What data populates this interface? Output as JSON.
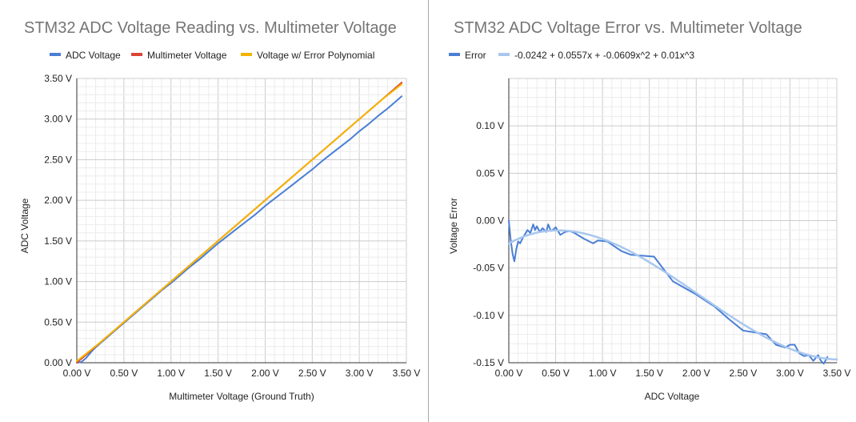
{
  "charts": [
    {
      "title": "STM32 ADC Voltage Reading vs. Multimeter Voltage",
      "legend": [
        "ADC Voltage",
        "Multimeter Voltage",
        "Voltage w/ Error Polynomial"
      ],
      "xlabel": "Multimeter Voltage (Ground Truth)",
      "ylabel": "ADC Voltage",
      "xticks": [
        "0.00 V",
        "0.50 V",
        "1.00 V",
        "1.50 V",
        "2.00 V",
        "2.50 V",
        "3.00 V",
        "3.50 V"
      ],
      "yticks": [
        "0.00 V",
        "0.50 V",
        "1.00 V",
        "1.50 V",
        "2.00 V",
        "2.50 V",
        "3.00 V",
        "3.50 V"
      ]
    },
    {
      "title": "STM32 ADC Voltage Error vs. Multimeter Voltage",
      "legend": [
        "Error",
        "-0.0242 + 0.0557x + -0.0609x^2 + 0.01x^3"
      ],
      "xlabel": "ADC Voltage",
      "ylabel": "Voltage Error",
      "xticks": [
        "0.00 V",
        "0.50 V",
        "1.00 V",
        "1.50 V",
        "2.00 V",
        "2.50 V",
        "3.00 V",
        "3.50 V"
      ],
      "yticks": [
        "0.10 V",
        "0.05 V",
        "0.00 V",
        "-0.05 V",
        "-0.10 V",
        "-0.15 V"
      ]
    }
  ],
  "chart_data": [
    {
      "type": "line",
      "title": "STM32 ADC Voltage Reading vs. Multimeter Voltage",
      "xlabel": "Multimeter Voltage (Ground Truth)",
      "ylabel": "ADC Voltage",
      "xlim": [
        0,
        3.5
      ],
      "ylim": [
        0,
        3.5
      ],
      "grid": true,
      "legend_position": "top",
      "series": [
        {
          "name": "ADC Voltage",
          "color": "#4a7fd4",
          "x": [
            0.0,
            0.05,
            0.1,
            0.15,
            0.2,
            0.3,
            0.4,
            0.5,
            0.6,
            0.7,
            0.8,
            0.9,
            1.0,
            1.1,
            1.2,
            1.3,
            1.4,
            1.5,
            1.6,
            1.7,
            1.8,
            1.9,
            2.0,
            2.1,
            2.2,
            2.3,
            2.4,
            2.5,
            2.6,
            2.7,
            2.8,
            2.9,
            3.0,
            3.1,
            3.2,
            3.3,
            3.4,
            3.45
          ],
          "y": [
            0.0,
            0.01,
            0.06,
            0.13,
            0.19,
            0.29,
            0.39,
            0.49,
            0.59,
            0.69,
            0.79,
            0.89,
            0.98,
            1.08,
            1.18,
            1.27,
            1.37,
            1.47,
            1.56,
            1.65,
            1.74,
            1.83,
            1.93,
            2.02,
            2.11,
            2.2,
            2.29,
            2.38,
            2.48,
            2.57,
            2.66,
            2.75,
            2.85,
            2.94,
            3.04,
            3.13,
            3.23,
            3.28
          ]
        },
        {
          "name": "Multimeter Voltage",
          "color": "#db4437",
          "x": [
            0.0,
            3.45
          ],
          "y": [
            0.0,
            3.45
          ]
        },
        {
          "name": "Voltage w/ Error Polynomial",
          "color": "#f4b400",
          "x": [
            0.0,
            0.25,
            0.5,
            0.75,
            1.0,
            1.25,
            1.5,
            1.75,
            2.0,
            2.25,
            2.5,
            2.75,
            3.0,
            3.25,
            3.45
          ],
          "y": [
            0.02,
            0.25,
            0.5,
            0.75,
            1.0,
            1.25,
            1.5,
            1.75,
            2.0,
            2.25,
            2.5,
            2.75,
            3.0,
            3.25,
            3.43
          ]
        }
      ]
    },
    {
      "type": "line",
      "title": "STM32 ADC Voltage Error vs. Multimeter Voltage",
      "xlabel": "ADC Voltage",
      "ylabel": "Voltage Error",
      "xlim": [
        0,
        3.5
      ],
      "ylim": [
        -0.15,
        0.15
      ],
      "grid": true,
      "legend_position": "top",
      "series": [
        {
          "name": "Error",
          "color": "#4a7fd4",
          "x": [
            0.0,
            0.02,
            0.04,
            0.06,
            0.08,
            0.1,
            0.12,
            0.15,
            0.2,
            0.23,
            0.26,
            0.28,
            0.3,
            0.33,
            0.36,
            0.4,
            0.42,
            0.45,
            0.48,
            0.5,
            0.55,
            0.6,
            0.65,
            0.7,
            0.8,
            0.9,
            0.95,
            1.05,
            1.2,
            1.3,
            1.55,
            1.75,
            2.0,
            2.2,
            2.35,
            2.5,
            2.75,
            2.85,
            2.95,
            3.0,
            3.05,
            3.1,
            3.15,
            3.2,
            3.25,
            3.3,
            3.33,
            3.36,
            3.4
          ],
          "y": [
            0.0,
            -0.02,
            -0.035,
            -0.043,
            -0.03,
            -0.022,
            -0.024,
            -0.018,
            -0.01,
            -0.013,
            -0.004,
            -0.01,
            -0.006,
            -0.012,
            -0.008,
            -0.012,
            -0.004,
            -0.011,
            -0.009,
            -0.007,
            -0.015,
            -0.012,
            -0.011,
            -0.013,
            -0.019,
            -0.024,
            -0.021,
            -0.022,
            -0.032,
            -0.036,
            -0.038,
            -0.064,
            -0.078,
            -0.091,
            -0.104,
            -0.116,
            -0.12,
            -0.131,
            -0.134,
            -0.131,
            -0.131,
            -0.14,
            -0.143,
            -0.142,
            -0.148,
            -0.142,
            -0.148,
            -0.151,
            -0.144
          ]
        },
        {
          "name": "-0.0242 + 0.0557x + -0.0609x^2 + 0.01x^3",
          "color": "#a8c7ef",
          "poly": [
            -0.0242,
            0.0557,
            -0.0609,
            0.01
          ],
          "x_range": [
            0.0,
            3.5
          ]
        }
      ]
    }
  ]
}
